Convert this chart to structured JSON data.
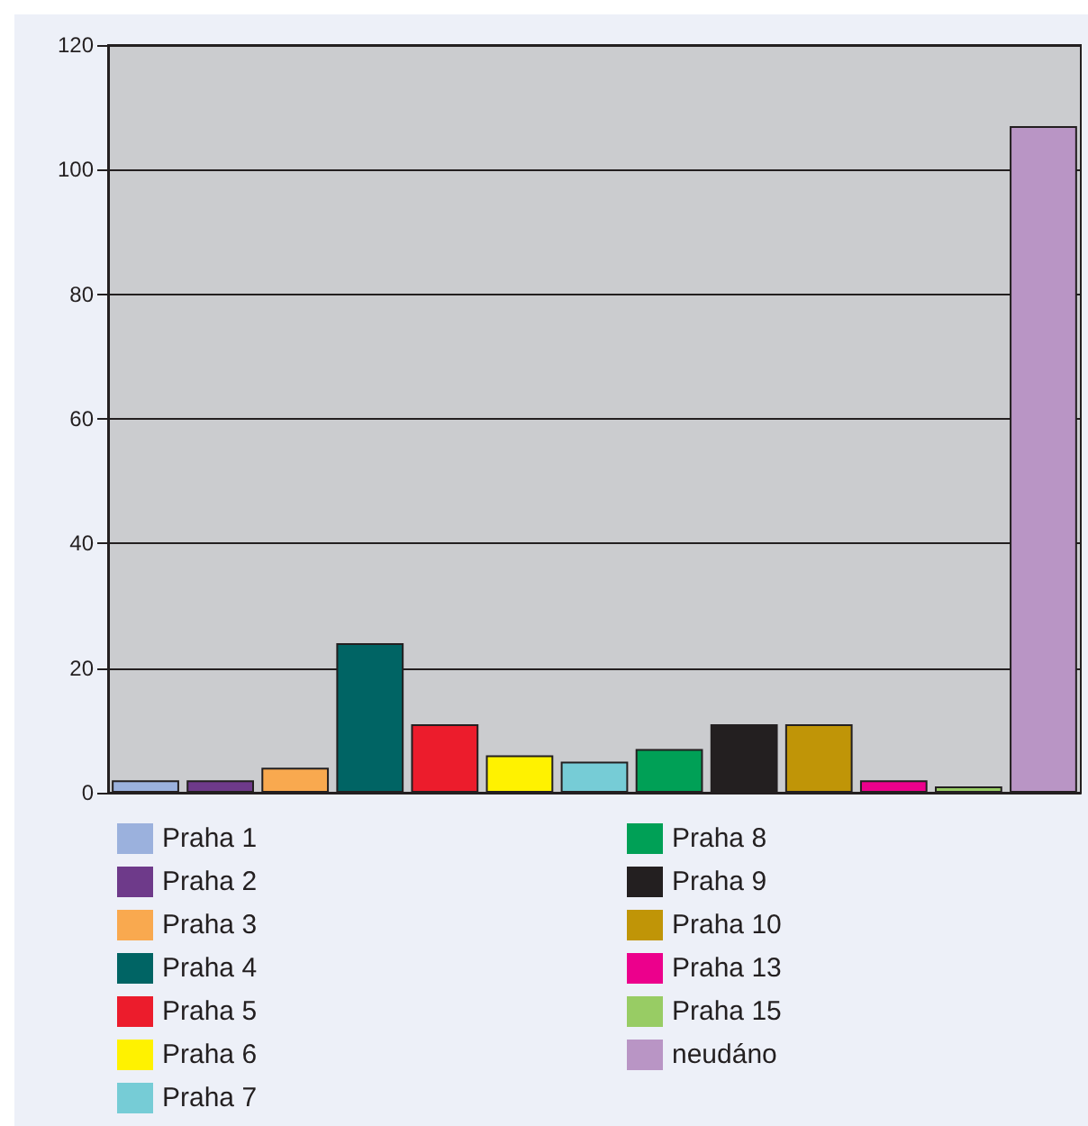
{
  "chart_data": {
    "type": "bar",
    "categories": [
      null,
      null,
      null,
      null,
      null,
      null,
      null,
      null,
      null,
      null,
      null,
      null,
      null
    ],
    "series": [
      {
        "name": "Praha 1",
        "color": "#9bb1dd",
        "values": [
          2,
          null,
          null,
          null,
          null,
          null,
          null,
          null,
          null,
          null,
          null,
          null,
          null
        ]
      },
      {
        "name": "Praha 2",
        "color": "#6e3a8a",
        "values": [
          null,
          2,
          null,
          null,
          null,
          null,
          null,
          null,
          null,
          null,
          null,
          null,
          null
        ]
      },
      {
        "name": "Praha 3",
        "color": "#f9a94f",
        "values": [
          null,
          null,
          4,
          null,
          null,
          null,
          null,
          null,
          null,
          null,
          null,
          null,
          null
        ]
      },
      {
        "name": "Praha 4",
        "color": "#006464",
        "values": [
          null,
          null,
          null,
          24,
          null,
          null,
          null,
          null,
          null,
          null,
          null,
          null,
          null
        ]
      },
      {
        "name": "Praha 5",
        "color": "#ec1c2c",
        "values": [
          null,
          null,
          null,
          null,
          11,
          null,
          null,
          null,
          null,
          null,
          null,
          null,
          null
        ]
      },
      {
        "name": "Praha 6",
        "color": "#fff200",
        "values": [
          null,
          null,
          null,
          null,
          null,
          6,
          null,
          null,
          null,
          null,
          null,
          null,
          null
        ]
      },
      {
        "name": "Praha 7",
        "color": "#76ccd6",
        "values": [
          null,
          null,
          null,
          null,
          null,
          null,
          5,
          null,
          null,
          null,
          null,
          null,
          null
        ]
      },
      {
        "name": "Praha 8",
        "color": "#00a056",
        "values": [
          null,
          null,
          null,
          null,
          null,
          null,
          null,
          7,
          null,
          null,
          null,
          null,
          null
        ]
      },
      {
        "name": "Praha 9",
        "color": "#231f20",
        "values": [
          null,
          null,
          null,
          null,
          null,
          null,
          null,
          null,
          11,
          null,
          null,
          null,
          null
        ]
      },
      {
        "name": "Praha 10",
        "color": "#c09507",
        "values": [
          null,
          null,
          null,
          null,
          null,
          null,
          null,
          null,
          null,
          11,
          null,
          null,
          null
        ]
      },
      {
        "name": "Praha 13",
        "color": "#ec008c",
        "values": [
          null,
          null,
          null,
          null,
          null,
          null,
          null,
          null,
          null,
          null,
          2,
          null,
          null
        ]
      },
      {
        "name": "Praha 15",
        "color": "#98cc64",
        "values": [
          null,
          null,
          null,
          null,
          null,
          null,
          null,
          null,
          null,
          null,
          null,
          1,
          null
        ]
      },
      {
        "name": "neudáno",
        "color": "#b995c5",
        "values": [
          null,
          null,
          null,
          null,
          null,
          null,
          null,
          null,
          null,
          null,
          null,
          null,
          107
        ]
      }
    ],
    "stacked": true,
    "ylim": [
      0,
      120
    ],
    "yticks": [
      0,
      20,
      40,
      60,
      80,
      100,
      120
    ],
    "grid": "y",
    "legend": "bottom",
    "tick_labels": "y"
  }
}
